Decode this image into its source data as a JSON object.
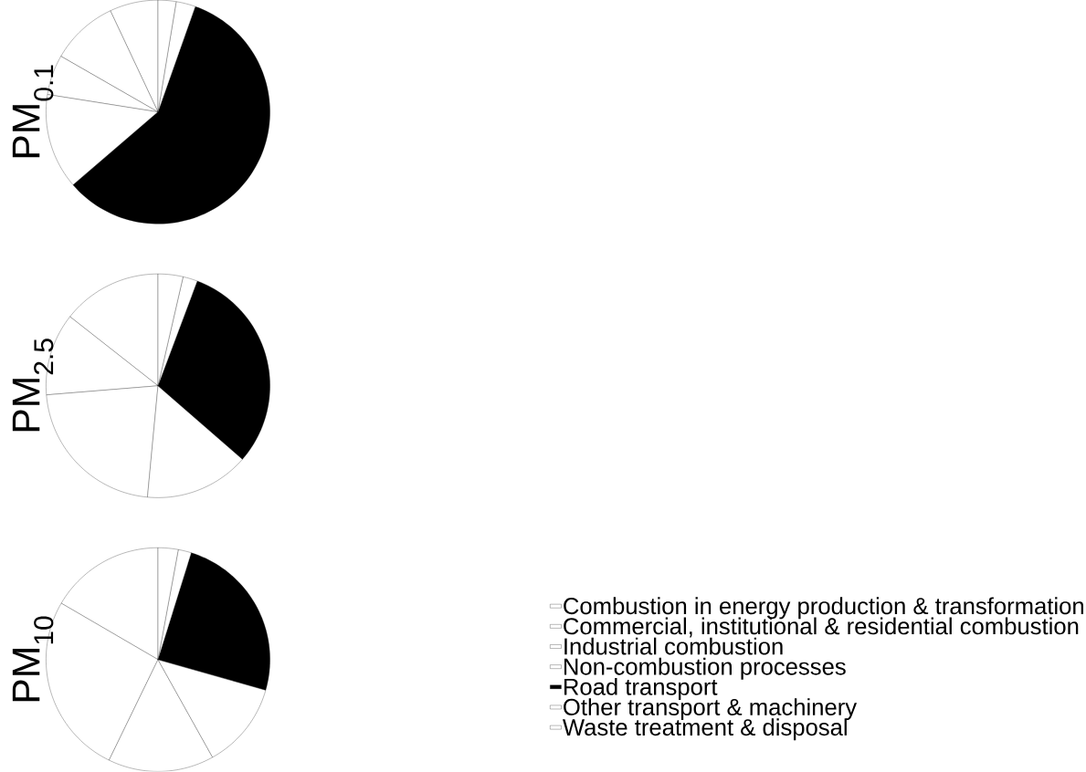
{
  "chart_data": {
    "type": "pie",
    "categories": [
      "Combustion in energy production & transformation",
      "Commercial, institutional & residential combustion",
      "Industrial combustion",
      "Non-combustion processes",
      "Road transport",
      "Other transport & machinery",
      "Waste treatment & disposal"
    ],
    "colors": [
      "#ffffff",
      "#ffffff",
      "#ffffff",
      "#ffffff",
      "#000000",
      "#ffffff",
      "#ffffff"
    ],
    "series": [
      {
        "name": "PM$_{10}$",
        "values": [
          16.6,
          26.2,
          15.3,
          12.5,
          24.6,
          1.9,
          2.9
        ]
      },
      {
        "name": "PM$_{2.5}$",
        "values": [
          14.4,
          11.9,
          22.2,
          15.1,
          30.7,
          2.1,
          3.6
        ]
      },
      {
        "name": "PM$_{0.1}$",
        "values": [
          7.0,
          9.7,
          5.8,
          13.8,
          58.3,
          2.8,
          2.6
        ]
      }
    ],
    "legend": "right"
  }
}
